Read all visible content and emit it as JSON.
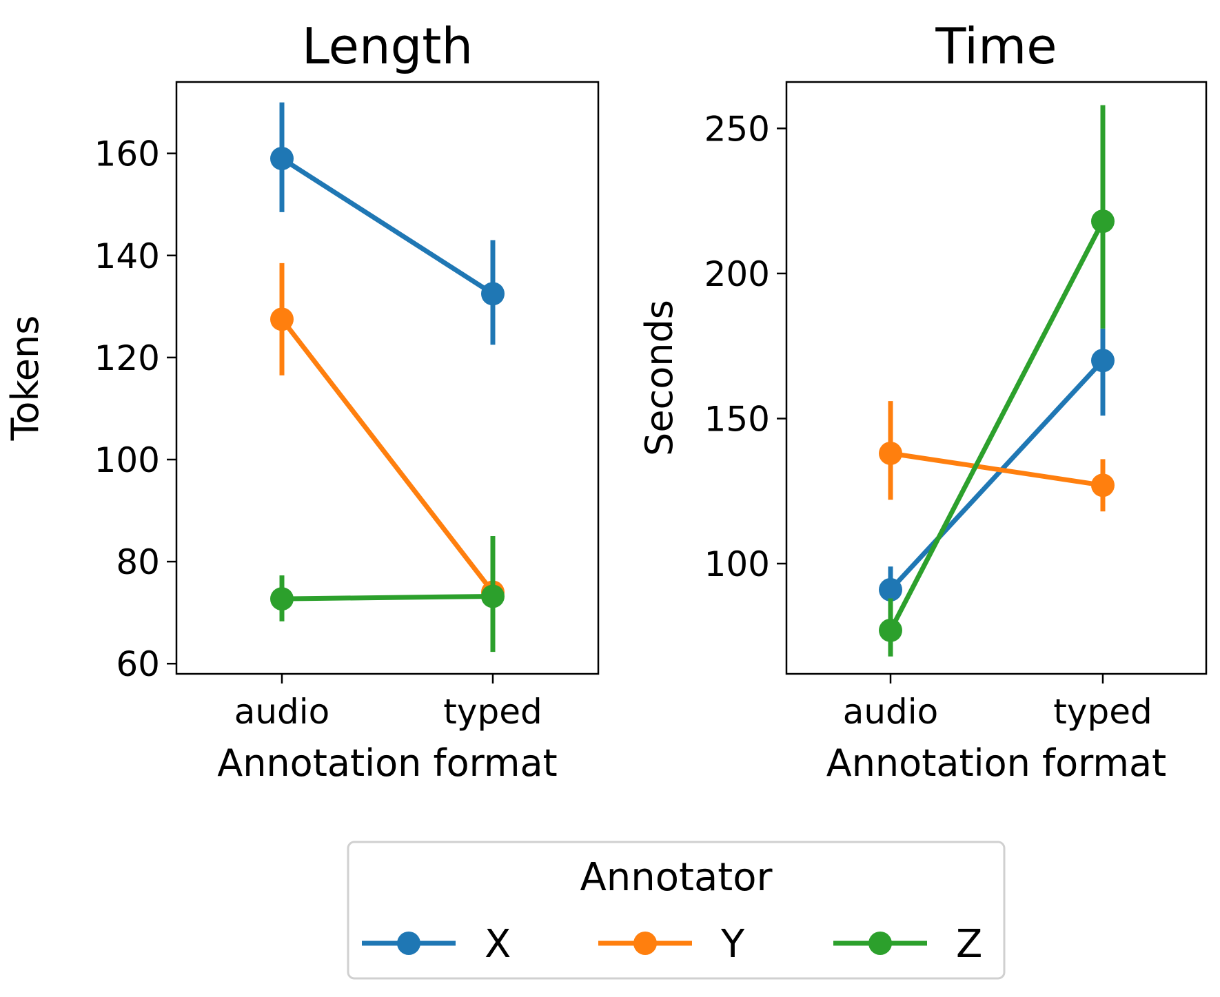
{
  "chart_data": [
    {
      "type": "line",
      "title": "Length",
      "xlabel": "Annotation format",
      "ylabel": "Tokens",
      "categories": [
        "audio",
        "typed"
      ],
      "yticks": [
        60,
        80,
        100,
        120,
        140,
        160
      ],
      "ylim": [
        58,
        174
      ],
      "series": [
        {
          "name": "X",
          "color": "#1f77b4",
          "values": [
            159,
            132.5
          ],
          "ci": [
            [
              148.5,
              170
            ],
            [
              122.5,
              143
            ]
          ]
        },
        {
          "name": "Y",
          "color": "#ff7f0e",
          "values": [
            127.5,
            74
          ],
          "ci": [
            [
              116.5,
              138.5
            ],
            [
              69,
              80
            ]
          ]
        },
        {
          "name": "Z",
          "color": "#2ca02c",
          "values": [
            72.7,
            73.2
          ],
          "ci": [
            [
              68.3,
              77.3
            ],
            [
              62.3,
              85
            ]
          ]
        }
      ]
    },
    {
      "type": "line",
      "title": "Time",
      "xlabel": "Annotation format",
      "ylabel": "Seconds",
      "categories": [
        "audio",
        "typed"
      ],
      "yticks": [
        100,
        150,
        200,
        250
      ],
      "ylim": [
        62,
        266
      ],
      "series": [
        {
          "name": "X",
          "color": "#1f77b4",
          "values": [
            91,
            170
          ],
          "ci": [
            [
              84,
              99
            ],
            [
              151,
              181
            ]
          ]
        },
        {
          "name": "Y",
          "color": "#ff7f0e",
          "values": [
            138,
            127
          ],
          "ci": [
            [
              122,
              156
            ],
            [
              118,
              136
            ]
          ]
        },
        {
          "name": "Z",
          "color": "#2ca02c",
          "values": [
            77,
            218
          ],
          "ci": [
            [
              68,
              88
            ],
            [
              181,
              258
            ]
          ]
        }
      ]
    }
  ],
  "legend": {
    "title": "Annotator",
    "entries": [
      {
        "name": "X",
        "color": "#1f77b4"
      },
      {
        "name": "Y",
        "color": "#ff7f0e"
      },
      {
        "name": "Z",
        "color": "#2ca02c"
      }
    ],
    "position": "bottom-center"
  }
}
